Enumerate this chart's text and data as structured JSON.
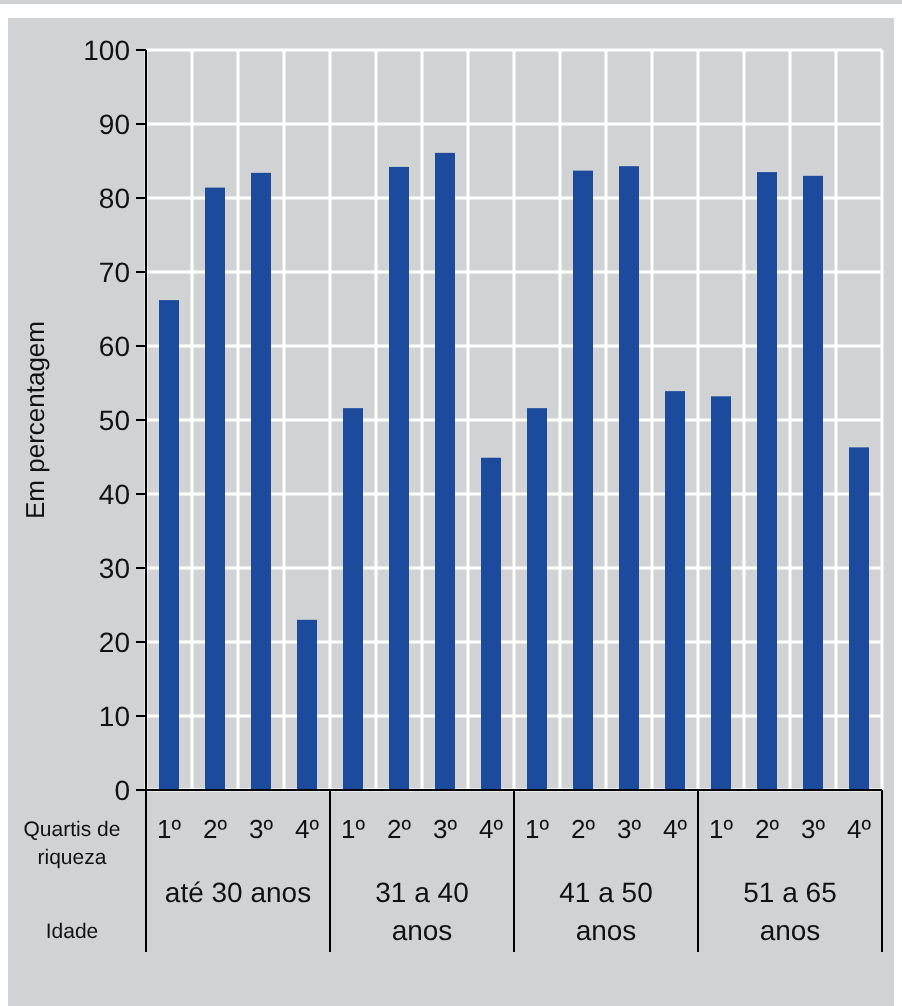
{
  "chart_data": {
    "type": "bar",
    "ylabel": "Em percentagem",
    "xlabel": "Quartis de riqueza",
    "categories": [
      "1º",
      "2º",
      "3º",
      "4º",
      "1º",
      "2º",
      "3º",
      "4º",
      "1º",
      "2º",
      "3º",
      "4º",
      "1º",
      "2º",
      "3º",
      "4º"
    ],
    "values": [
      66.2,
      81.4,
      83.4,
      23.0,
      51.6,
      84.2,
      86.1,
      44.9,
      51.6,
      83.7,
      84.3,
      53.9,
      53.2,
      83.5,
      83.0,
      46.3
    ],
    "color": "#1c4a9c",
    "ylim": [
      0,
      100
    ],
    "yticks": [
      0,
      10,
      20,
      30,
      40,
      50,
      60,
      70,
      80,
      90,
      100
    ],
    "grid": true,
    "annotations": [
      "Idade",
      "até 30 anos",
      "31 a 40 anos",
      "41 a 50 anos",
      "51 a 65 anos"
    ]
  }
}
